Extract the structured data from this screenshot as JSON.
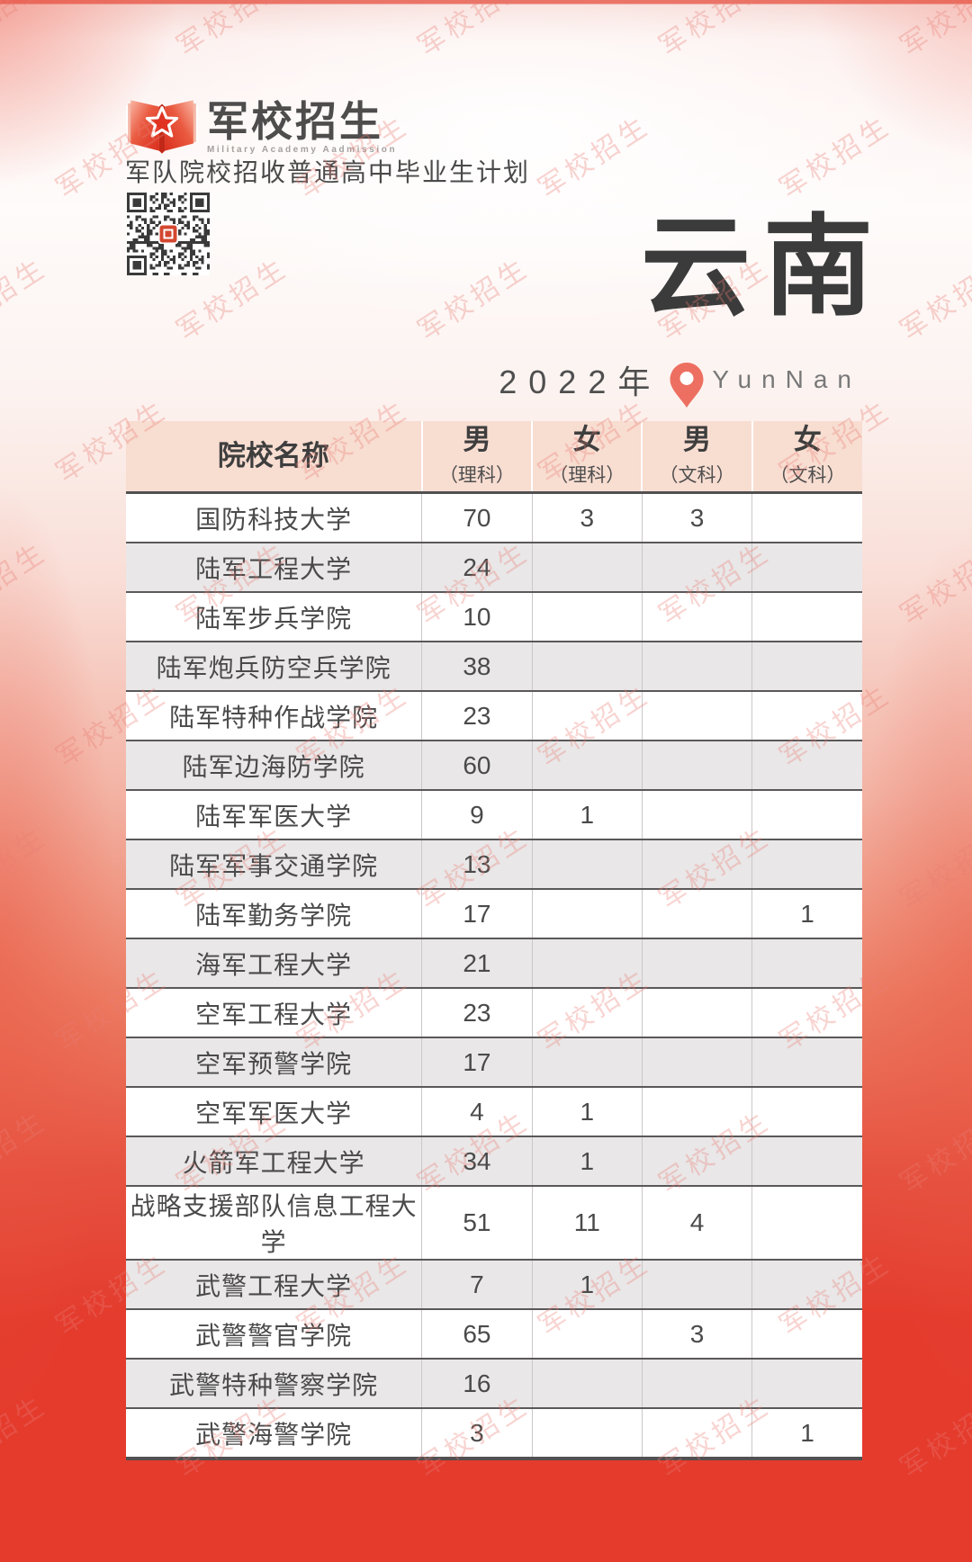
{
  "page": {
    "brand": {
      "logo_title": "军校招生",
      "logo_subtitle": "Military Academy Aadmission",
      "doc_subtitle": "军队院校招收普通高中毕业生计划"
    },
    "title": {
      "province": "云南",
      "year": "2022年",
      "province_en": "YunNan"
    },
    "watermark_text": "军校招生",
    "icons": {
      "logo_icon": "open-book-with-star",
      "pin_icon": "location-pin",
      "qr_code": "wechat-qr-code"
    },
    "colors": {
      "accent_red": "#e43b2d",
      "header_bg": "#f8ddd1",
      "row_alt_bg": "#e9e7e8",
      "pin_coral": "#ed6f61",
      "title_gray": "#3b3b3b"
    }
  },
  "table": {
    "columns": [
      {
        "label": "院校名称",
        "sub": ""
      },
      {
        "label": "男",
        "sub": "（理科）"
      },
      {
        "label": "女",
        "sub": "（理科）"
      },
      {
        "label": "男",
        "sub": "（文科）"
      },
      {
        "label": "女",
        "sub": "（文科）"
      }
    ],
    "rows": [
      {
        "name": "国防科技大学",
        "values": [
          "70",
          "3",
          "3",
          ""
        ]
      },
      {
        "name": "陆军工程大学",
        "values": [
          "24",
          "",
          "",
          ""
        ]
      },
      {
        "name": "陆军步兵学院",
        "values": [
          "10",
          "",
          "",
          ""
        ]
      },
      {
        "name": "陆军炮兵防空兵学院",
        "values": [
          "38",
          "",
          "",
          ""
        ]
      },
      {
        "name": "陆军特种作战学院",
        "values": [
          "23",
          "",
          "",
          ""
        ]
      },
      {
        "name": "陆军边海防学院",
        "values": [
          "60",
          "",
          "",
          ""
        ]
      },
      {
        "name": "陆军军医大学",
        "values": [
          "9",
          "1",
          "",
          ""
        ]
      },
      {
        "name": "陆军军事交通学院",
        "values": [
          "13",
          "",
          "",
          ""
        ]
      },
      {
        "name": "陆军勤务学院",
        "values": [
          "17",
          "",
          "",
          "1"
        ]
      },
      {
        "name": "海军工程大学",
        "values": [
          "21",
          "",
          "",
          ""
        ]
      },
      {
        "name": "空军工程大学",
        "values": [
          "23",
          "",
          "",
          ""
        ]
      },
      {
        "name": "空军预警学院",
        "values": [
          "17",
          "",
          "",
          ""
        ]
      },
      {
        "name": "空军军医大学",
        "values": [
          "4",
          "1",
          "",
          ""
        ]
      },
      {
        "name": "火箭军工程大学",
        "values": [
          "34",
          "1",
          "",
          ""
        ]
      },
      {
        "name": "战略支援部队信息工程大学",
        "values": [
          "51",
          "11",
          "4",
          ""
        ]
      },
      {
        "name": "武警工程大学",
        "values": [
          "7",
          "1",
          "",
          ""
        ]
      },
      {
        "name": "武警警官学院",
        "values": [
          "65",
          "",
          "3",
          ""
        ]
      },
      {
        "name": "武警特种警察学院",
        "values": [
          "16",
          "",
          "",
          ""
        ]
      },
      {
        "name": "武警海警学院",
        "values": [
          "3",
          "",
          "",
          "1"
        ]
      }
    ]
  }
}
